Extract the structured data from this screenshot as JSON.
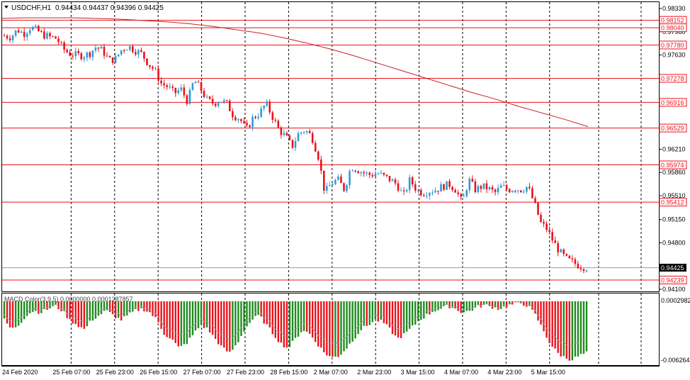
{
  "header": {
    "symbol": "USDCHF,H1",
    "ohlc": "0.94434 0.94437 0.94396 0.94425",
    "indicator_label": "MACD Color(3,9,5) 0.0000000 0.0001287857"
  },
  "colors": {
    "bull": "#2E9BD6",
    "bear": "#E8131C",
    "level_line": "#E8131C",
    "ma_line": "#C8202A",
    "hist_up": "#1E8C1E",
    "hist_down": "#E8131C",
    "signal": "#A0A0A0",
    "grid": "#000000",
    "current_price_bg": "#000000"
  },
  "chart_data": {
    "type": "candlestick",
    "price_axis": {
      "min": 0.941,
      "max": 0.9833,
      "ticks": [
        "0.98330",
        "0.97980",
        "0.97630",
        "0.96210",
        "0.95860",
        "0.95510",
        "0.95150",
        "0.94800",
        "0.94100"
      ]
    },
    "levels": [
      {
        "label": "0.98152",
        "value": 0.98152
      },
      {
        "label": "0.98040",
        "value": 0.9804
      },
      {
        "label": "0.97780",
        "value": 0.9778
      },
      {
        "label": "0.97278",
        "value": 0.97278
      },
      {
        "label": "0.96916",
        "value": 0.96916
      },
      {
        "label": "0.96529",
        "value": 0.96529
      },
      {
        "label": "0.95974",
        "value": 0.95974
      },
      {
        "label": "0.95412",
        "value": 0.95412
      },
      {
        "label": "0.94239",
        "value": 0.94239
      }
    ],
    "current_price": {
      "label": "0.94425",
      "value": 0.94425
    },
    "time_labels": [
      "24 Feb 2020",
      "25 Feb 07:00",
      "25 Feb 23:00",
      "26 Feb 15:00",
      "27 Feb 07:00",
      "27 Feb 23:00",
      "28 Feb 15:00",
      "2 Mar 07:00",
      "2 Mar 23:00",
      "3 Mar 15:00",
      "4 Mar 07:00",
      "4 Mar 23:00",
      "5 Mar 15:00"
    ],
    "close_path": [
      0.9792,
      0.979,
      0.9801,
      0.9795,
      0.9805,
      0.98,
      0.9793,
      0.979,
      0.9788,
      0.9772,
      0.9765,
      0.9763,
      0.9762,
      0.9765,
      0.9775,
      0.977,
      0.9755,
      0.9757,
      0.9772,
      0.9776,
      0.977,
      0.9765,
      0.975,
      0.974,
      0.972,
      0.9715,
      0.9705,
      0.9712,
      0.9693,
      0.9725,
      0.9712,
      0.9695,
      0.969,
      0.9695,
      0.969,
      0.9672,
      0.9667,
      0.965,
      0.9668,
      0.9675,
      0.969,
      0.967,
      0.965,
      0.964,
      0.9625,
      0.9645,
      0.965,
      0.964,
      0.961,
      0.9555,
      0.957,
      0.9575,
      0.956,
      0.9595,
      0.959,
      0.9585,
      0.9582,
      0.9585,
      0.958,
      0.9575,
      0.9568,
      0.955,
      0.9575,
      0.956,
      0.9555,
      0.9558,
      0.956,
      0.9565,
      0.9568,
      0.956,
      0.954,
      0.9575,
      0.956,
      0.9565,
      0.9562,
      0.9555,
      0.9565,
      0.956,
      0.9562,
      0.956,
      0.9565,
      0.954,
      0.951,
      0.95,
      0.948,
      0.9465,
      0.9455,
      0.945,
      0.9445,
      0.94425
    ],
    "ma_path": [
      0.9818,
      0.9819,
      0.9819,
      0.9819,
      0.9818,
      0.9817,
      0.9815,
      0.9813,
      0.981,
      0.9806,
      0.9801,
      0.9796,
      0.9789,
      0.9781,
      0.9772,
      0.9762,
      0.9751,
      0.974,
      0.9729,
      0.9718,
      0.9707,
      0.9697,
      0.9686,
      0.9676,
      0.9666,
      0.9655
    ],
    "macd": {
      "min": -0.006264,
      "max": 0.0002982,
      "labels": [
        "0.0002982",
        "-0.006264"
      ],
      "histogram": [
        -0.002,
        -0.003,
        -0.0025,
        -0.0015,
        -0.001,
        -0.0012,
        -0.0008,
        -0.0005,
        -0.001,
        -0.002,
        -0.0025,
        -0.003,
        -0.002,
        -0.0015,
        -0.001,
        -0.0015,
        -0.002,
        -0.0015,
        -0.001,
        -0.0008,
        -0.0012,
        -0.002,
        -0.0035,
        -0.004,
        -0.005,
        -0.0045,
        -0.0035,
        -0.0025,
        -0.003,
        -0.004,
        -0.005,
        -0.0055,
        -0.0045,
        -0.003,
        -0.002,
        -0.0015,
        -0.0025,
        -0.0035,
        -0.0045,
        -0.005,
        -0.004,
        -0.003,
        -0.0035,
        -0.0045,
        -0.0055,
        -0.006,
        -0.0058,
        -0.005,
        -0.004,
        -0.003,
        -0.0025,
        -0.002,
        -0.0022,
        -0.003,
        -0.004,
        -0.0035,
        -0.0028,
        -0.002,
        -0.0015,
        -0.001,
        -0.0008,
        -0.0005,
        -0.0008,
        -0.0012,
        -0.001,
        -0.0006,
        -0.0004,
        -0.0006,
        -0.0008,
        -0.0005,
        -0.0003,
        -0.0002,
        -0.0005,
        -0.0015,
        -0.003,
        -0.0045,
        -0.0055,
        -0.006,
        -0.0062,
        -0.0058,
        -0.0055
      ]
    }
  }
}
